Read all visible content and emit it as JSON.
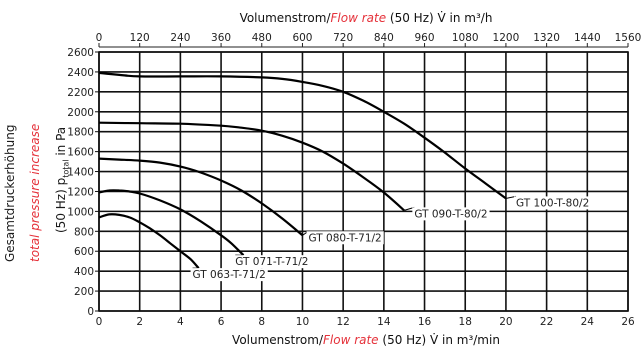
{
  "chart_data": {
    "type": "line",
    "top_axis": {
      "label_prefix": "Volumenstrom/",
      "label_italic": "Flow rate",
      "label_suffix": " (50 Hz) V̇ in m³/h",
      "ticks": [
        "0",
        "120",
        "240",
        "360",
        "480",
        "600",
        "720",
        "840",
        "960",
        "1080",
        "1200",
        "1320",
        "1440",
        "1560"
      ],
      "range": [
        0,
        1560
      ]
    },
    "x_axis": {
      "label_prefix": "Volumenstrom/",
      "label_italic": "Flow rate",
      "label_suffix": " (50 Hz) V̇ in m³/min",
      "ticks": [
        "0",
        "2",
        "4",
        "6",
        "8",
        "10",
        "12",
        "14",
        "16",
        "18",
        "20",
        "22",
        "24",
        "26"
      ],
      "range": [
        0,
        26
      ]
    },
    "y_axis": {
      "label_line1": "Gesamtdruckerhöhung",
      "label_line2": "total pressure increase",
      "label_line3": "(50 Hz) p",
      "label_line3_sub": "total",
      "label_line3_end": " in Pa",
      "ticks": [
        "0",
        "200",
        "400",
        "600",
        "800",
        "1000",
        "1200",
        "1400",
        "1600",
        "1800",
        "2000",
        "2200",
        "2400",
        "2600"
      ],
      "range": [
        0,
        2600
      ]
    },
    "grid": true,
    "series": [
      {
        "name": "GT 063-T-71/2",
        "x": [
          0,
          0.5,
          1,
          1.5,
          2,
          2.5,
          3,
          3.5,
          4,
          4.5,
          4.9
        ],
        "y": [
          940,
          970,
          965,
          940,
          890,
          830,
          760,
          680,
          600,
          520,
          430
        ]
      },
      {
        "name": "GT 071-T-71/2",
        "x": [
          0,
          0.5,
          1,
          1.5,
          2,
          3,
          4,
          5,
          6,
          6.5,
          7.1
        ],
        "y": [
          1190,
          1210,
          1210,
          1200,
          1180,
          1110,
          1020,
          900,
          760,
          680,
          560
        ]
      },
      {
        "name": "GT 080-T-71/2",
        "x": [
          0,
          1,
          2,
          3,
          4,
          5,
          6,
          7,
          8,
          9,
          10
        ],
        "y": [
          1530,
          1520,
          1510,
          1490,
          1450,
          1390,
          1310,
          1210,
          1080,
          930,
          760
        ]
      },
      {
        "name": "GT 090-T-80/2",
        "x": [
          0,
          2,
          4,
          6,
          7,
          8,
          9,
          10,
          11,
          12,
          13,
          14,
          15
        ],
        "y": [
          1890,
          1885,
          1880,
          1860,
          1840,
          1810,
          1760,
          1690,
          1600,
          1480,
          1340,
          1190,
          1010
        ]
      },
      {
        "name": "GT 100-T-80/2",
        "x": [
          0,
          1,
          2,
          4,
          6,
          8,
          9,
          10,
          11,
          12,
          13,
          14,
          15,
          16,
          17,
          18,
          19,
          20
        ],
        "y": [
          2390,
          2370,
          2355,
          2355,
          2355,
          2345,
          2330,
          2300,
          2260,
          2200,
          2110,
          2000,
          1880,
          1740,
          1590,
          1430,
          1280,
          1130
        ]
      }
    ],
    "series_label_values": [
      {
        "series": 0,
        "x": 4.5,
        "y": 330
      },
      {
        "series": 1,
        "x": 6.6,
        "y": 460
      },
      {
        "series": 2,
        "x": 10.2,
        "y": 700
      },
      {
        "series": 3,
        "x": 15.4,
        "y": 940
      },
      {
        "series": 4,
        "x": 20.4,
        "y": 1050
      }
    ]
  }
}
